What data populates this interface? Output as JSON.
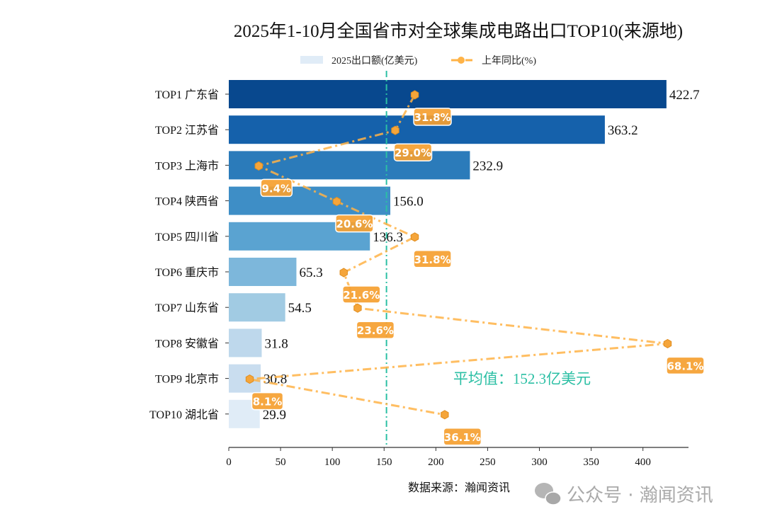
{
  "chart_data": {
    "type": "bar",
    "orientation": "horizontal",
    "title": "2025年1-10月全国省市对全球集成电路出口TOP10(来源地)",
    "categories": [
      "TOP1 广东省",
      "TOP2 江苏省",
      "TOP3 上海市",
      "TOP4 陕西省",
      "TOP5 四川省",
      "TOP6 重庆市",
      "TOP7 山东省",
      "TOP8 安徽省",
      "TOP9 北京市",
      "TOP10 湖北省"
    ],
    "series": [
      {
        "name": "2025出口额(亿美元)",
        "type": "bar",
        "values": [
          422.7,
          363.2,
          232.9,
          156.0,
          136.3,
          65.3,
          54.5,
          31.8,
          30.8,
          29.9
        ],
        "colors": [
          "#08488e",
          "#1561ab",
          "#2b7bba",
          "#3e8ec6",
          "#5aa3d1",
          "#7db7db",
          "#a1cbe3",
          "#bed8ec",
          "#c9ddef",
          "#e0ecf7"
        ]
      },
      {
        "name": "上年同比(%)",
        "type": "line",
        "values": [
          31.8,
          29.0,
          9.4,
          20.6,
          31.8,
          21.6,
          23.6,
          68.1,
          8.1,
          36.1
        ],
        "value_labels": [
          "31.8%",
          "29.0%",
          "9.4%",
          "20.6%",
          "31.8%",
          "21.6%",
          "23.6%",
          "68.1%",
          "8.1%",
          "36.1%"
        ],
        "color": "#ffb347",
        "linestyle": "dash-dot",
        "marker": "hexagon"
      }
    ],
    "xlim": [
      0,
      444
    ],
    "secondary_xlim": [
      5.1,
      71.1
    ],
    "xticks": [
      0,
      50,
      100,
      150,
      200,
      250,
      300,
      350,
      400
    ],
    "average": {
      "value": 152.3,
      "label": "平均值：152.3亿美元",
      "color": "#2bbfa4"
    },
    "legend": {
      "placement": "top-center"
    },
    "grid": false,
    "source": "数据来源：瀚闻资讯",
    "watermark": "公众号 · 瀚闻资讯"
  }
}
